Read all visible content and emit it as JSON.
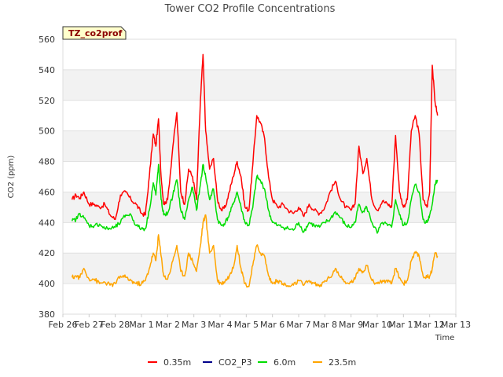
{
  "chart_data": {
    "type": "line",
    "title": "Tower CO2 Profile Concentrations",
    "xlabel": "Time",
    "ylabel": "CO2 (ppm)",
    "ylim": [
      380,
      560
    ],
    "xlim": [
      0,
      15
    ],
    "grid": "horizontal bands",
    "legend_position": "bottom-center",
    "site_tag": "TZ_co2prof",
    "y_ticks": [
      380,
      400,
      420,
      440,
      460,
      480,
      500,
      520,
      540,
      560
    ],
    "x_ticks": [
      {
        "value": 0,
        "label": "Feb 26"
      },
      {
        "value": 1,
        "label": "Feb 27"
      },
      {
        "value": 2,
        "label": "Feb 28"
      },
      {
        "value": 3,
        "label": "Mar 1"
      },
      {
        "value": 4,
        "label": "Mar 2"
      },
      {
        "value": 5,
        "label": "Mar 3"
      },
      {
        "value": 6,
        "label": "Mar 4"
      },
      {
        "value": 7,
        "label": "Mar 5"
      },
      {
        "value": 8,
        "label": "Mar 6"
      },
      {
        "value": 9,
        "label": "Mar 7"
      },
      {
        "value": 10,
        "label": "Mar 8"
      },
      {
        "value": 11,
        "label": "Mar 9"
      },
      {
        "value": 12,
        "label": "Mar 10"
      },
      {
        "value": 13,
        "label": "Mar 11"
      },
      {
        "value": 14,
        "label": "Mar 12"
      },
      {
        "value": 15,
        "label": "Mar 13"
      }
    ],
    "series": [
      {
        "name": "0.35m",
        "color": "#ff0000",
        "x": [
          0.35,
          0.5,
          0.65,
          0.8,
          1.0,
          1.2,
          1.4,
          1.6,
          1.8,
          2.0,
          2.2,
          2.4,
          2.6,
          2.8,
          3.0,
          3.15,
          3.3,
          3.45,
          3.55,
          3.65,
          3.75,
          3.85,
          4.0,
          4.2,
          4.35,
          4.5,
          4.65,
          4.8,
          4.95,
          5.1,
          5.25,
          5.35,
          5.45,
          5.6,
          5.75,
          5.9,
          6.05,
          6.2,
          6.35,
          6.5,
          6.65,
          6.8,
          6.95,
          7.1,
          7.25,
          7.4,
          7.55,
          7.7,
          7.85,
          8.0,
          8.2,
          8.4,
          8.6,
          8.8,
          9.0,
          9.2,
          9.4,
          9.6,
          9.8,
          10.0,
          10.2,
          10.4,
          10.6,
          10.8,
          11.0,
          11.15,
          11.3,
          11.45,
          11.6,
          11.8,
          12.0,
          12.2,
          12.4,
          12.55,
          12.7,
          12.85,
          13.0,
          13.15,
          13.3,
          13.45,
          13.6,
          13.75,
          13.9,
          14.0,
          14.1,
          14.2,
          14.3
        ],
        "y": [
          455,
          458,
          456,
          460,
          452,
          452,
          450,
          452,
          445,
          442,
          458,
          460,
          455,
          452,
          446,
          445,
          470,
          498,
          490,
          508,
          470,
          452,
          455,
          490,
          512,
          460,
          452,
          475,
          470,
          455,
          520,
          550,
          500,
          475,
          482,
          455,
          448,
          450,
          460,
          470,
          480,
          470,
          450,
          448,
          478,
          510,
          505,
          495,
          470,
          455,
          450,
          452,
          448,
          446,
          450,
          444,
          452,
          448,
          446,
          450,
          460,
          467,
          455,
          450,
          448,
          452,
          490,
          472,
          482,
          455,
          448,
          454,
          452,
          450,
          497,
          460,
          450,
          455,
          500,
          510,
          498,
          455,
          450,
          460,
          543,
          520,
          510
        ]
      },
      {
        "name": "CO2_P3",
        "color": "#00008b",
        "x": [],
        "y": []
      },
      {
        "name": "6.0m",
        "color": "#00dd00",
        "x": [
          0.35,
          0.5,
          0.65,
          0.8,
          1.0,
          1.2,
          1.4,
          1.6,
          1.8,
          2.0,
          2.2,
          2.4,
          2.6,
          2.8,
          3.0,
          3.15,
          3.3,
          3.45,
          3.55,
          3.65,
          3.75,
          3.85,
          4.0,
          4.2,
          4.35,
          4.5,
          4.65,
          4.8,
          4.95,
          5.1,
          5.25,
          5.35,
          5.45,
          5.6,
          5.75,
          5.9,
          6.05,
          6.2,
          6.35,
          6.5,
          6.65,
          6.8,
          6.95,
          7.1,
          7.25,
          7.4,
          7.55,
          7.7,
          7.85,
          8.0,
          8.2,
          8.4,
          8.6,
          8.8,
          9.0,
          9.2,
          9.4,
          9.6,
          9.8,
          10.0,
          10.2,
          10.4,
          10.6,
          10.8,
          11.0,
          11.15,
          11.3,
          11.45,
          11.6,
          11.8,
          12.0,
          12.2,
          12.4,
          12.55,
          12.7,
          12.85,
          13.0,
          13.15,
          13.3,
          13.45,
          13.6,
          13.75,
          13.9,
          14.0,
          14.1,
          14.2,
          14.3
        ],
        "y": [
          441,
          442,
          446,
          443,
          438,
          438,
          439,
          436,
          436,
          437,
          440,
          445,
          445,
          438,
          436,
          436,
          448,
          466,
          458,
          478,
          455,
          445,
          446,
          458,
          468,
          448,
          442,
          455,
          463,
          448,
          465,
          478,
          470,
          455,
          462,
          442,
          438,
          440,
          445,
          452,
          460,
          450,
          440,
          438,
          450,
          470,
          467,
          462,
          448,
          440,
          438,
          437,
          436,
          435,
          440,
          434,
          440,
          438,
          437,
          440,
          442,
          447,
          443,
          438,
          437,
          440,
          452,
          447,
          450,
          440,
          433,
          440,
          438,
          437,
          455,
          445,
          438,
          440,
          455,
          465,
          460,
          442,
          440,
          445,
          452,
          465,
          468
        ]
      },
      {
        "name": "23.5m",
        "color": "#ffa500",
        "x": [
          0.35,
          0.5,
          0.65,
          0.8,
          1.0,
          1.2,
          1.4,
          1.6,
          1.8,
          2.0,
          2.2,
          2.4,
          2.6,
          2.8,
          3.0,
          3.15,
          3.3,
          3.45,
          3.55,
          3.65,
          3.75,
          3.85,
          4.0,
          4.2,
          4.35,
          4.5,
          4.65,
          4.8,
          4.95,
          5.1,
          5.25,
          5.35,
          5.45,
          5.6,
          5.75,
          5.9,
          6.05,
          6.2,
          6.35,
          6.5,
          6.65,
          6.8,
          6.95,
          7.1,
          7.25,
          7.4,
          7.55,
          7.7,
          7.85,
          8.0,
          8.2,
          8.4,
          8.6,
          8.8,
          9.0,
          9.2,
          9.4,
          9.6,
          9.8,
          10.0,
          10.2,
          10.4,
          10.6,
          10.8,
          11.0,
          11.15,
          11.3,
          11.45,
          11.6,
          11.8,
          12.0,
          12.2,
          12.4,
          12.55,
          12.7,
          12.85,
          13.0,
          13.15,
          13.3,
          13.45,
          13.6,
          13.75,
          13.9,
          14.0,
          14.1,
          14.2,
          14.3
        ],
        "y": [
          404,
          405,
          404,
          410,
          403,
          403,
          400,
          401,
          399,
          400,
          405,
          404,
          402,
          400,
          400,
          402,
          410,
          420,
          415,
          432,
          418,
          405,
          403,
          415,
          425,
          408,
          405,
          420,
          415,
          408,
          425,
          440,
          445,
          420,
          425,
          402,
          400,
          402,
          405,
          410,
          425,
          410,
          400,
          398,
          412,
          425,
          420,
          418,
          405,
          400,
          402,
          400,
          398,
          399,
          402,
          399,
          402,
          400,
          398,
          402,
          404,
          410,
          404,
          400,
          401,
          403,
          410,
          408,
          412,
          402,
          400,
          402,
          401,
          400,
          410,
          404,
          400,
          402,
          415,
          420,
          418,
          405,
          404,
          405,
          410,
          420,
          418
        ]
      }
    ]
  }
}
